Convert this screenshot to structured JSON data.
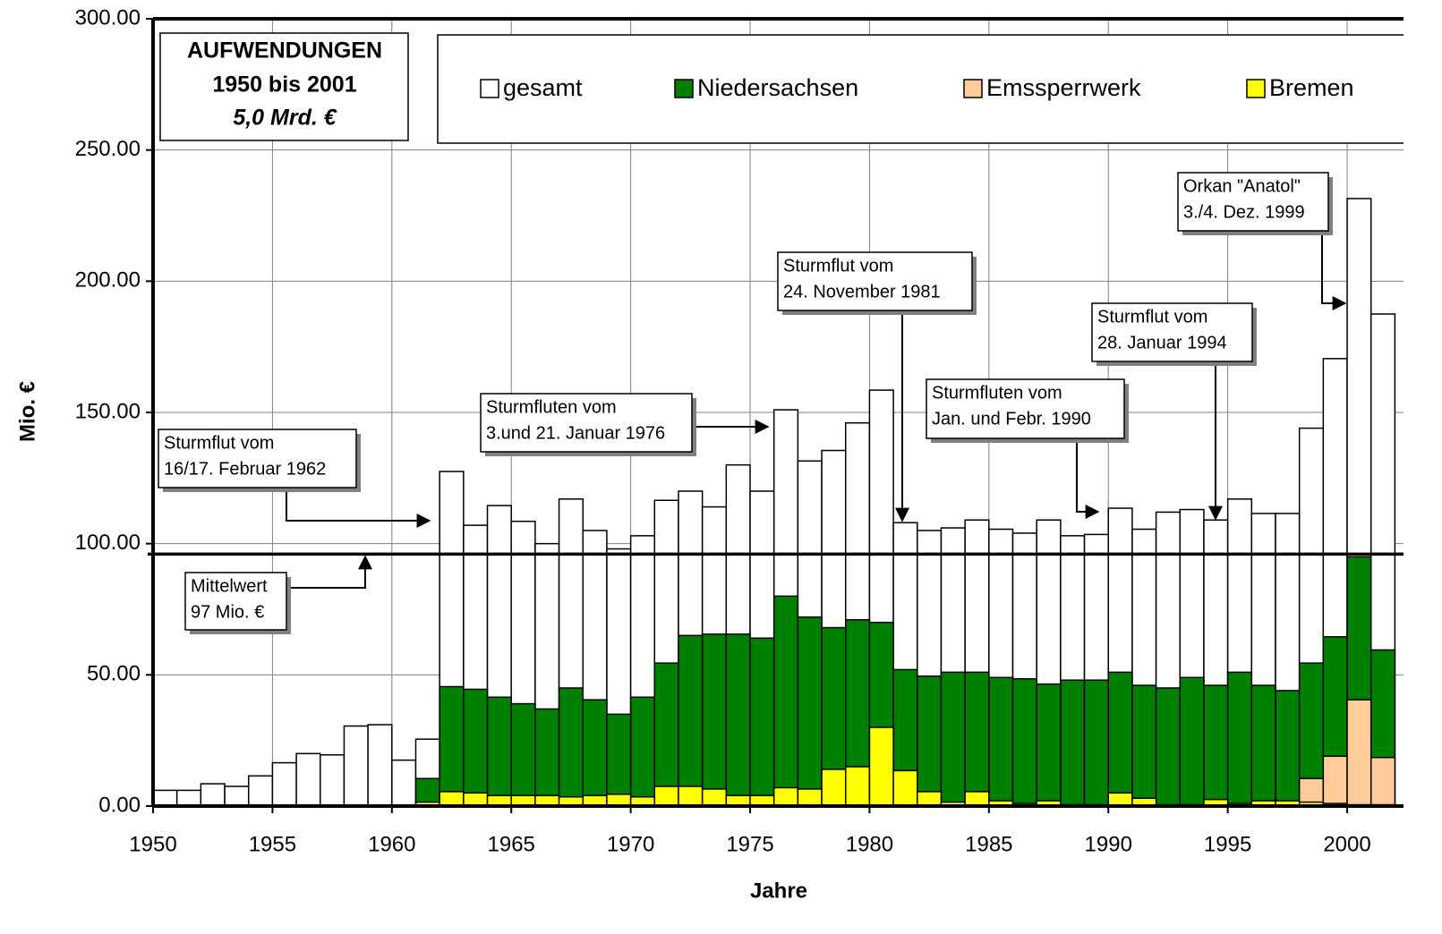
{
  "chart_data": {
    "type": "bar",
    "x_label": "Jahre",
    "y_label": "Mio. €",
    "info": [
      "AUFWENDUNGEN",
      "1950 bis 2001",
      "5,0 Mrd. €"
    ],
    "categories": [
      1950,
      1951,
      1952,
      1953,
      1954,
      1955,
      1956,
      1957,
      1958,
      1959,
      1960,
      1961,
      1962,
      1963,
      1964,
      1965,
      1966,
      1967,
      1968,
      1969,
      1970,
      1971,
      1972,
      1973,
      1974,
      1975,
      1976,
      1977,
      1978,
      1979,
      1980,
      1981,
      1982,
      1983,
      1984,
      1985,
      1986,
      1987,
      1988,
      1989,
      1990,
      1991,
      1992,
      1993,
      1994,
      1995,
      1996,
      1997,
      1998,
      1999,
      2000,
      2001
    ],
    "series": [
      {
        "name": "gesamt",
        "color": "#ffffff",
        "values": [
          6,
          6,
          8.5,
          7.5,
          11.5,
          16.5,
          20,
          19.5,
          30.5,
          31,
          17.5,
          25.5,
          127.5,
          107,
          114.5,
          108.5,
          100,
          117,
          105,
          98,
          103,
          116.5,
          120,
          114,
          130,
          120,
          151,
          131.5,
          135.5,
          146,
          158.5,
          108,
          105,
          106,
          109,
          105.5,
          104,
          109,
          103,
          103.5,
          113.5,
          105.5,
          112,
          113,
          109,
          117,
          111.5,
          111.5,
          144,
          170.5,
          231.5,
          187.5
        ]
      },
      {
        "name": "Niedersachsen",
        "color": "#008000",
        "values": [
          null,
          null,
          null,
          null,
          null,
          null,
          null,
          null,
          null,
          null,
          null,
          10.5,
          45.5,
          44.5,
          41.5,
          39,
          37,
          45,
          40.5,
          35,
          41.5,
          54.5,
          65,
          65.5,
          65.5,
          64,
          80,
          72,
          68,
          71,
          70,
          52,
          49.5,
          51,
          51,
          49,
          48.5,
          46.5,
          48,
          48,
          51,
          46,
          45,
          49,
          46,
          51,
          46,
          44,
          54.5,
          64.5,
          95,
          59.5
        ]
      },
      {
        "name": "Emssperrwerk",
        "color": "#ffcc99",
        "values": [
          null,
          null,
          null,
          null,
          null,
          null,
          null,
          null,
          null,
          null,
          null,
          null,
          null,
          null,
          null,
          null,
          null,
          null,
          null,
          null,
          null,
          null,
          null,
          null,
          null,
          null,
          null,
          null,
          null,
          null,
          null,
          null,
          null,
          null,
          null,
          null,
          null,
          null,
          null,
          null,
          null,
          null,
          null,
          null,
          null,
          null,
          null,
          null,
          10.5,
          19,
          40.5,
          18.5
        ]
      },
      {
        "name": "Bremen",
        "color": "#ffff00",
        "values": [
          null,
          null,
          null,
          null,
          null,
          null,
          null,
          null,
          null,
          null,
          null,
          1.5,
          5.5,
          5,
          4,
          4,
          4,
          3.5,
          4,
          4.5,
          3.5,
          7.5,
          7.5,
          6.5,
          4,
          4,
          7,
          6.5,
          14,
          15,
          30,
          13.5,
          5.5,
          1.5,
          5.5,
          2,
          1,
          2,
          0.5,
          0.5,
          5,
          3,
          0.5,
          0.5,
          2.5,
          1,
          2,
          2,
          1.5,
          1,
          0.5,
          0.5
        ]
      }
    ],
    "mean_value": 96,
    "xlim": [
      1950,
      2002.36
    ],
    "xticks": [
      1950,
      1955,
      1960,
      1965,
      1970,
      1975,
      1980,
      1985,
      1990,
      1995,
      2000
    ],
    "ylim": [
      0,
      300
    ],
    "yticks": [
      {
        "value": 0,
        "label": "0.00"
      },
      {
        "value": 50,
        "label": "50.00"
      },
      {
        "value": 100,
        "label": "100.00"
      },
      {
        "value": 150,
        "label": "150.00"
      },
      {
        "value": 200,
        "label": "200.00"
      },
      {
        "value": 250,
        "label": "250.00"
      },
      {
        "value": 300,
        "label": "300.00"
      }
    ],
    "grid": true,
    "annotations": [
      {
        "lines": [
          "Sturmflut vom",
          "16/17. Februar 1962"
        ]
      },
      {
        "lines": [
          "Mittelwert",
          "97 Mio. €"
        ]
      },
      {
        "lines": [
          "Sturmfluten vom",
          "3.und 21. Januar 1976"
        ]
      },
      {
        "lines": [
          "Sturmflut vom",
          "24. November 1981"
        ]
      },
      {
        "lines": [
          "Sturmfluten vom",
          "Jan. und Febr. 1990"
        ]
      },
      {
        "lines": [
          "Sturmflut vom",
          "28. Januar 1994"
        ]
      },
      {
        "lines": [
          "Orkan \"Anatol\"",
          "3./4. Dez. 1999"
        ]
      }
    ]
  }
}
